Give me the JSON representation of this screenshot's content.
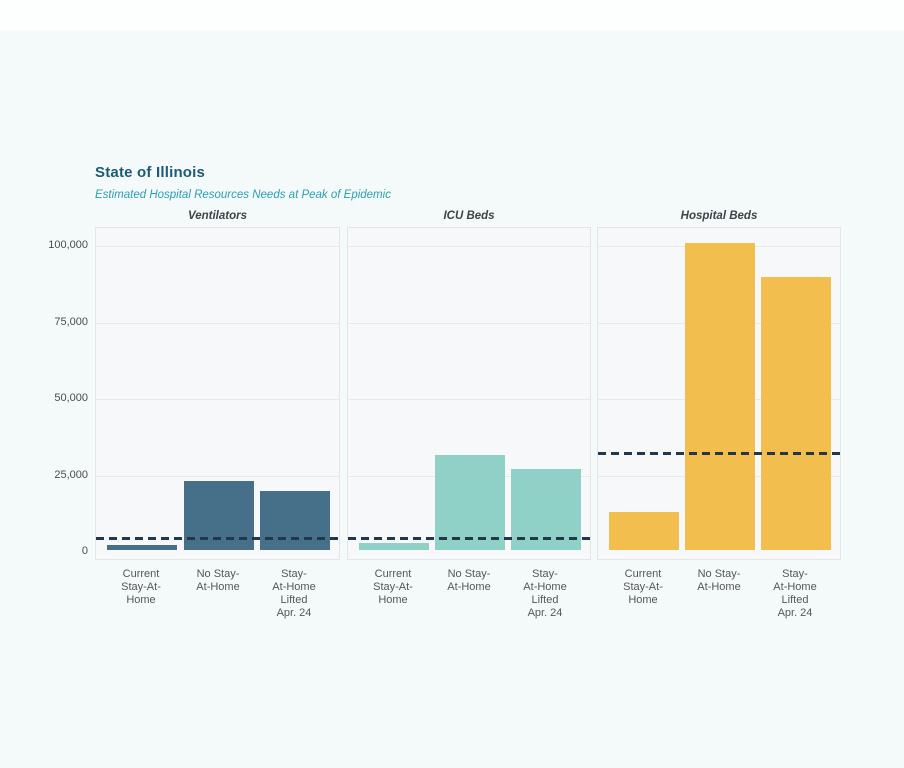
{
  "header": {
    "title": "State of Illinois",
    "subtitle": "Estimated Hospital Resources Needs at Peak of Epidemic"
  },
  "chart_data": {
    "type": "bar",
    "title": "State of Illinois",
    "subtitle": "Estimated Hospital Resources Needs at Peak of Epidemic",
    "layout": "3 faceted bar panels sharing one y axis, dashed horizontal capacity line per panel",
    "categories": [
      [
        "Current",
        "Stay-At-",
        "Home"
      ],
      [
        "No Stay-",
        "At-Home"
      ],
      [
        "Stay-",
        "At-Home",
        "Lifted",
        "Apr. 24"
      ]
    ],
    "facets": [
      {
        "label": "Ventilators",
        "bar_color": "#46708a",
        "values": [
          1600,
          22600,
          19400
        ],
        "capacity_line": 3800
      },
      {
        "label": "ICU Beds",
        "bar_color": "#8fd0c7",
        "values": [
          2200,
          31000,
          26400
        ],
        "capacity_line": 3700
      },
      {
        "label": "Hospital Beds",
        "bar_color": "#f2bf4e",
        "values": [
          12300,
          100300,
          89300
        ],
        "capacity_line": 31500
      }
    ],
    "yaxis": {
      "range": [
        0,
        105900
      ],
      "ticks": [
        {
          "value": 0,
          "label": "0"
        },
        {
          "value": 25000,
          "label": "25,000"
        },
        {
          "value": 50000,
          "label": "50,000"
        },
        {
          "value": 75000,
          "label": "75,000"
        },
        {
          "value": 100000,
          "label": "100,000"
        }
      ]
    },
    "grid": true,
    "legend": "none",
    "colors": {
      "capacity_line": "#22384a",
      "panel_background": "#f7f8f9",
      "page_background": "#f4f9fa",
      "title": "#1c5b76",
      "subtitle": "#2ba0b0"
    }
  }
}
